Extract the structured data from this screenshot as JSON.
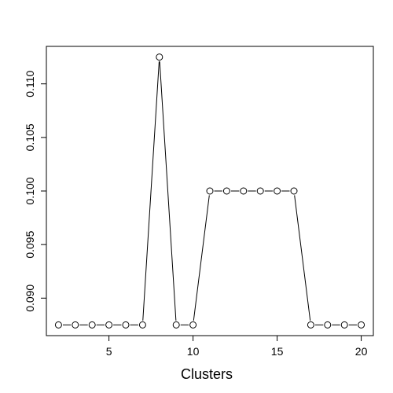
{
  "chart_data": {
    "type": "line",
    "title": "",
    "xlabel": "Clusters",
    "ylabel": "",
    "x": [
      2,
      3,
      4,
      5,
      6,
      7,
      8,
      9,
      10,
      11,
      12,
      13,
      14,
      15,
      16,
      17,
      18,
      19,
      20
    ],
    "y": [
      0.0875,
      0.0875,
      0.0875,
      0.0875,
      0.0875,
      0.0875,
      0.1125,
      0.0875,
      0.0875,
      0.1,
      0.1,
      0.1,
      0.1,
      0.1,
      0.1,
      0.0875,
      0.0875,
      0.0875,
      0.0875
    ],
    "xlim": [
      1.28,
      20.72
    ],
    "ylim": [
      0.0865,
      0.1135
    ],
    "xticks": [
      5,
      10,
      15,
      20
    ],
    "xtick_labels": [
      "5",
      "10",
      "15",
      "20"
    ],
    "yticks": [
      0.09,
      0.095,
      0.1,
      0.105,
      0.11
    ],
    "ytick_labels": [
      "0.090",
      "0.095",
      "0.100",
      "0.105",
      "0.110"
    ],
    "marker": "open-circle",
    "grid": false,
    "legend": "none"
  }
}
